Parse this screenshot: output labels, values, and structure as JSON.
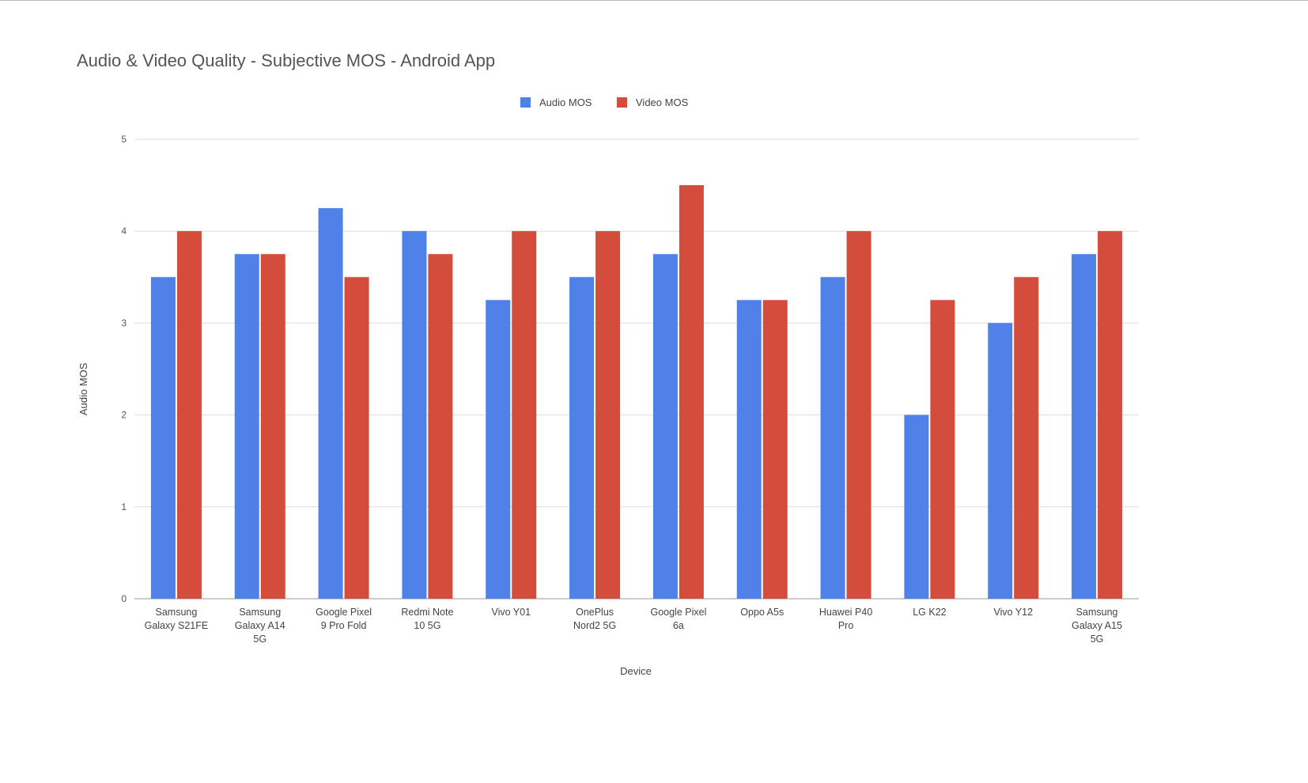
{
  "chart_data": {
    "type": "bar",
    "title": "Audio & Video Quality - Subjective MOS - Android App",
    "xlabel": "Device",
    "ylabel": "Audio MOS",
    "ylim": [
      0,
      5
    ],
    "yticks": [
      "0",
      "1",
      "2",
      "3",
      "4",
      "5"
    ],
    "grid": true,
    "legend_position": "top-center",
    "categories": [
      [
        "Samsung",
        "Galaxy S21FE"
      ],
      [
        "Samsung",
        "Galaxy A14",
        "5G"
      ],
      [
        "Google Pixel",
        "9 Pro Fold"
      ],
      [
        "Redmi Note",
        "10 5G"
      ],
      [
        "Vivo Y01"
      ],
      [
        "OnePlus",
        "Nord2 5G"
      ],
      [
        "Google Pixel",
        "6a"
      ],
      [
        "Oppo A5s"
      ],
      [
        "Huawei P40",
        "Pro"
      ],
      [
        "LG K22"
      ],
      [
        "Vivo Y12"
      ],
      [
        "Samsung",
        "Galaxy A15",
        "5G"
      ]
    ],
    "series": [
      {
        "name": "Audio MOS",
        "color": "#4f81e8",
        "values": [
          3.5,
          3.75,
          4.25,
          4.0,
          3.25,
          3.5,
          3.75,
          3.25,
          3.5,
          2.0,
          3.0,
          3.75
        ]
      },
      {
        "name": "Video MOS",
        "color": "#d44c3c",
        "values": [
          4.0,
          3.75,
          3.5,
          3.75,
          4.0,
          4.0,
          4.5,
          3.25,
          4.0,
          3.25,
          3.5,
          4.0
        ]
      }
    ]
  }
}
